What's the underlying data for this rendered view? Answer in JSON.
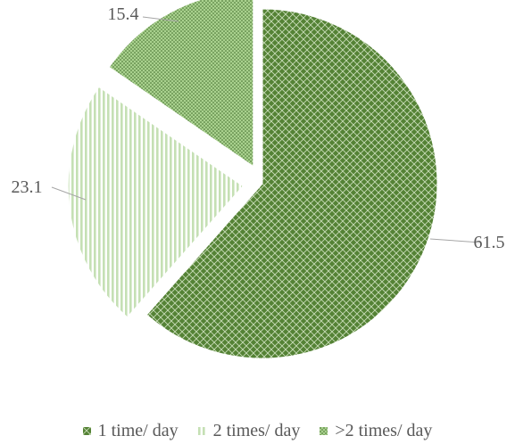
{
  "chart_data": {
    "type": "pie",
    "start_angle_deg": 0,
    "direction": "clockwise",
    "exploded": true,
    "slices": [
      {
        "label": "1 time/ day",
        "value": 61.5,
        "display": "61.5",
        "color": "#548235",
        "pattern": "crosshatch"
      },
      {
        "label": "2 times/ day",
        "value": 23.1,
        "display": "23.1",
        "color": "#c5e0b4",
        "pattern": "vertical-stripes"
      },
      {
        "label": ">2 times/ day",
        "value": 15.4,
        "display": "15.4",
        "color": "#a9d18e",
        "pattern": "dots"
      }
    ],
    "legend_position": "bottom"
  }
}
